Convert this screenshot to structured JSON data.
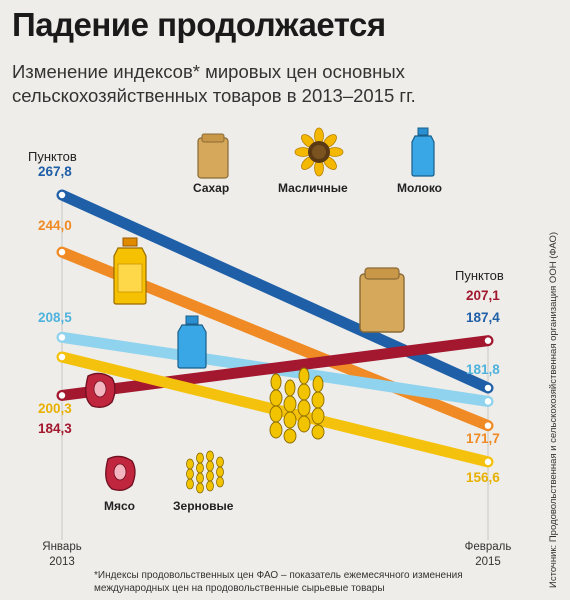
{
  "header": {
    "title": "Падение продолжается",
    "subtitle": "Изменение индексов* мировых цен основных сельскохозяйственных товаров в 2013–2015 гг."
  },
  "colors": {
    "sugar": "#1f5fa8",
    "oils": "#f08a24",
    "dairy": "#8fd3ee",
    "meat": "#a3172f",
    "cereals": "#f4c20d",
    "background": "#eeede9"
  },
  "legend": {
    "sugar": "Сахар",
    "oils": "Масличные",
    "dairy": "Молоко",
    "meat": "Мясо",
    "cereals": "Зерновые"
  },
  "source": "Источник: Продовольственная и сельскохозяйственная организация ООН (ФАО)",
  "footnote": "*Индексы продовольственных цен ФАО – показатель ежемесячного изменения международных цен на продовольственные сырьевые товары",
  "chart_data": {
    "type": "line",
    "title": "Падение продолжается",
    "subtitle": "Изменение индексов* мировых цен основных сельскохозяйственных товаров в 2013–2015 гг.",
    "unit_label": "Пунктов",
    "x": [
      "Январь 2013",
      "Февраль 2015"
    ],
    "series": [
      {
        "key": "sugar",
        "name": "Сахар",
        "color": "#1f5fa8",
        "values": [
          267.8,
          187.4
        ],
        "labels": [
          "267,8",
          "187,4"
        ]
      },
      {
        "key": "oils",
        "name": "Масличные",
        "color": "#f08a24",
        "values": [
          244.0,
          171.7
        ],
        "labels": [
          "244,0",
          "171,7"
        ]
      },
      {
        "key": "dairy",
        "name": "Молоко",
        "color": "#8fd3ee",
        "values": [
          208.5,
          181.8
        ],
        "labels": [
          "208,5",
          "181,8"
        ]
      },
      {
        "key": "meat",
        "name": "Мясо",
        "color": "#a3172f",
        "values": [
          184.3,
          207.1
        ],
        "labels": [
          "184,3",
          "207,1"
        ]
      },
      {
        "key": "cereals",
        "name": "Зерновые",
        "color": "#f4c20d",
        "values": [
          200.3,
          156.6
        ],
        "labels": [
          "200,3",
          "156,6"
        ]
      }
    ]
  }
}
